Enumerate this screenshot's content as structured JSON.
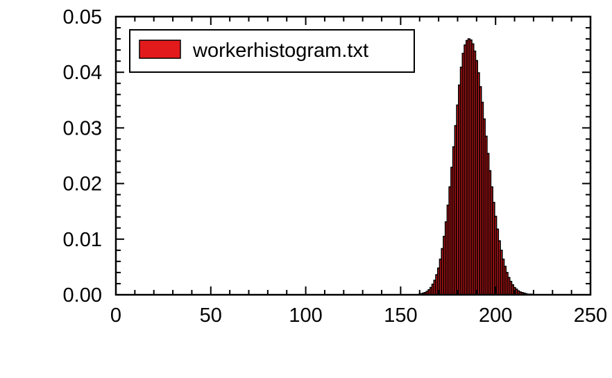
{
  "chart_data": {
    "type": "bar",
    "title": "",
    "xlabel": "",
    "ylabel": "",
    "xlim": [
      0,
      250
    ],
    "ylim": [
      0,
      0.05
    ],
    "x_ticks": [
      "0",
      "50",
      "100",
      "150",
      "200",
      "250"
    ],
    "y_ticks": [
      "0.00",
      "0.01",
      "0.02",
      "0.03",
      "0.04",
      "0.05"
    ],
    "grid": false,
    "legend": {
      "position": "top-left",
      "entries": [
        {
          "label": "workerhistogram.txt",
          "color": "#e31a1c"
        }
      ]
    },
    "bar_edge_color": "#000000",
    "series": [
      {
        "name": "workerhistogram.txt",
        "color": "#e31a1c",
        "bin_width": 1,
        "x": [
          160,
          161,
          162,
          163,
          164,
          165,
          166,
          167,
          168,
          169,
          170,
          171,
          172,
          173,
          174,
          175,
          176,
          177,
          178,
          179,
          180,
          181,
          182,
          183,
          184,
          185,
          186,
          187,
          188,
          189,
          190,
          191,
          192,
          193,
          194,
          195,
          196,
          197,
          198,
          199,
          200,
          201,
          202,
          203,
          204,
          205,
          206,
          207,
          208,
          209,
          210,
          211,
          212,
          213,
          214,
          215,
          216,
          217,
          218,
          219,
          220
        ],
        "values": [
          0.0001,
          0.0002,
          0.0003,
          0.0004,
          0.0006,
          0.0009,
          0.0013,
          0.0019,
          0.0026,
          0.0036,
          0.0048,
          0.0064,
          0.0083,
          0.0105,
          0.0131,
          0.0161,
          0.0194,
          0.0229,
          0.0266,
          0.0304,
          0.0341,
          0.0377,
          0.0409,
          0.0434,
          0.0449,
          0.0457,
          0.046,
          0.0458,
          0.0451,
          0.0438,
          0.0421,
          0.0399,
          0.0374,
          0.0346,
          0.0316,
          0.0285,
          0.0254,
          0.0223,
          0.0194,
          0.0166,
          0.0141,
          0.0118,
          0.0097,
          0.008,
          0.0064,
          0.0051,
          0.004,
          0.0031,
          0.0024,
          0.0018,
          0.0013,
          0.001,
          0.0007,
          0.0005,
          0.0004,
          0.0003,
          0.0002,
          0.0001,
          0.0001,
          0.0001,
          0.0
        ]
      }
    ]
  }
}
